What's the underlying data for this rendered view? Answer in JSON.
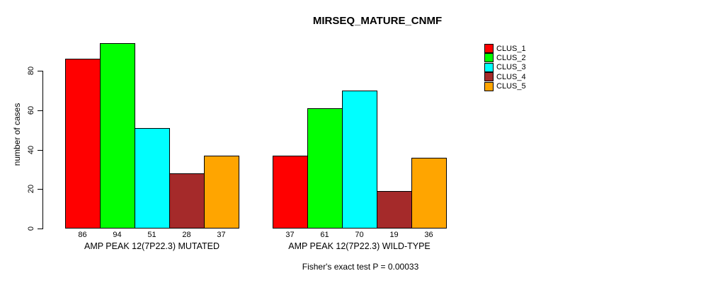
{
  "title": "MIRSEQ_MATURE_CNMF",
  "footer": "Fisher's exact test P = 0.00033",
  "y_axis": {
    "label": "number of cases",
    "ticks": [
      0,
      20,
      40,
      60,
      80
    ]
  },
  "legend": {
    "items": [
      {
        "label": "CLUS_1",
        "color": "#FF0000"
      },
      {
        "label": "CLUS_2",
        "color": "#00FF00"
      },
      {
        "label": "CLUS_3",
        "color": "#00FFFF"
      },
      {
        "label": "CLUS_4",
        "color": "#A52A2A"
      },
      {
        "label": "CLUS_5",
        "color": "#FFA500"
      }
    ]
  },
  "chart_data": {
    "type": "bar",
    "title": "MIRSEQ_MATURE_CNMF",
    "ylabel": "number of cases",
    "ylim": [
      0,
      94
    ],
    "yticks": [
      0,
      20,
      40,
      60,
      80
    ],
    "grid": false,
    "legend_position": "right",
    "bar_value_labels": true,
    "categories": [
      "AMP PEAK 12(7P22.3) MUTATED",
      "AMP PEAK 12(7P22.3) WILD-TYPE"
    ],
    "series": [
      {
        "name": "CLUS_1",
        "color": "#FF0000",
        "values": [
          86,
          37
        ]
      },
      {
        "name": "CLUS_2",
        "color": "#00FF00",
        "values": [
          94,
          61
        ]
      },
      {
        "name": "CLUS_3",
        "color": "#00FFFF",
        "values": [
          51,
          70
        ]
      },
      {
        "name": "CLUS_4",
        "color": "#A52A2A",
        "values": [
          28,
          19
        ]
      },
      {
        "name": "CLUS_5",
        "color": "#FFA500",
        "values": [
          37,
          36
        ]
      }
    ],
    "annotation": "Fisher's exact test P = 0.00033"
  }
}
